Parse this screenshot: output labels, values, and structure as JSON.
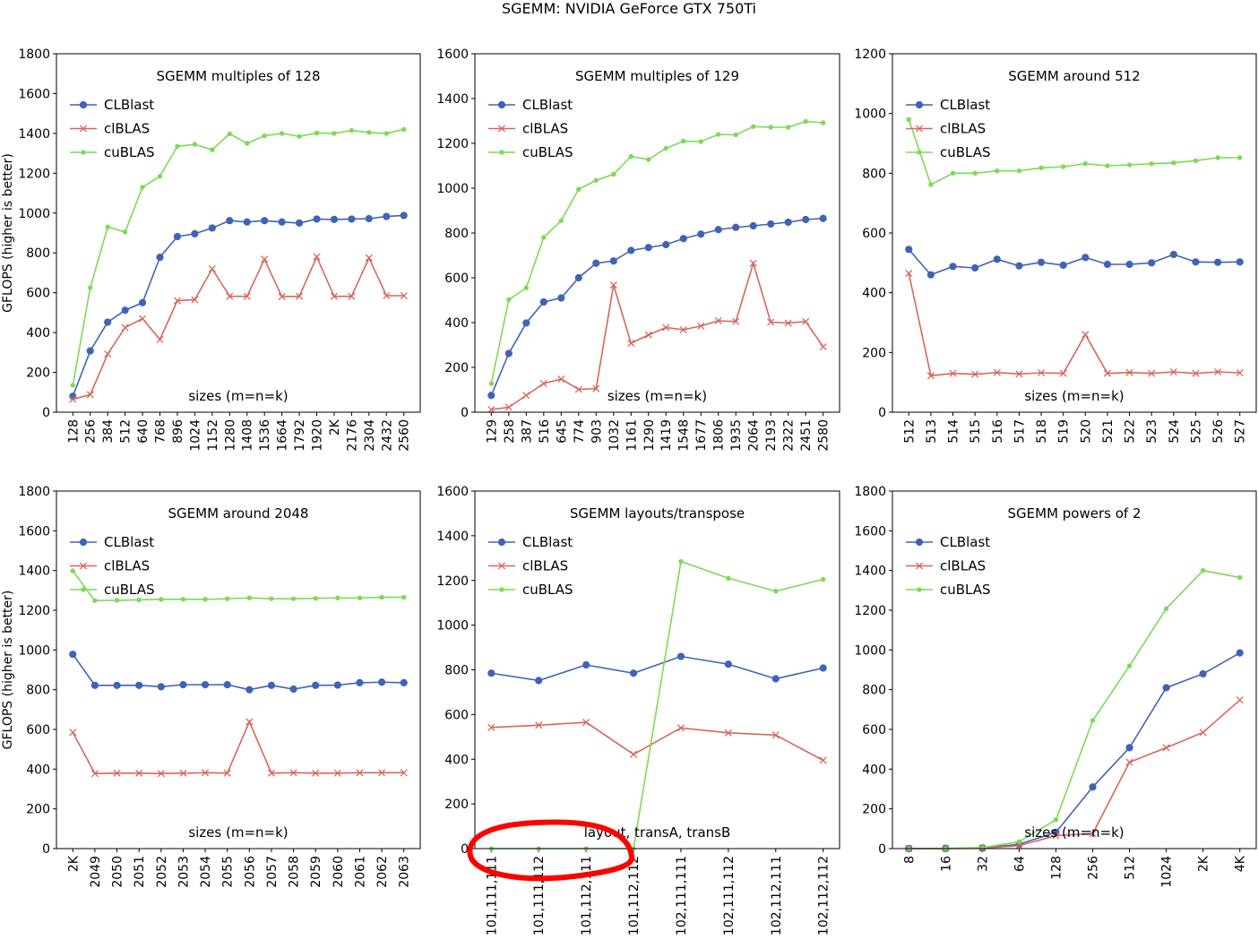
{
  "figure": {
    "title": "SGEMM: NVIDIA GeForce GTX 750Ti"
  },
  "colors": {
    "CLBlast": "#4063b6",
    "clBLAS": "#d6675c",
    "cuBLAS": "#7ed957",
    "annotation": "#ff0000"
  },
  "chart_data": [
    {
      "type": "line",
      "title": "SGEMM multiples of 128",
      "xlabel": "sizes (m=n=k)",
      "ylabel": "GFLOPS (higher is better)",
      "ylim": [
        0,
        1800
      ],
      "yticks": [
        0,
        200,
        400,
        600,
        800,
        1000,
        1200,
        1400,
        1600,
        1800
      ],
      "categories": [
        "128",
        "256",
        "384",
        "512",
        "640",
        "768",
        "896",
        "1024",
        "1152",
        "1280",
        "1408",
        "1536",
        "1664",
        "1792",
        "1920",
        "2K",
        "2176",
        "2304",
        "2432",
        "2560"
      ],
      "legend": "top-left",
      "grid": false,
      "series": [
        {
          "name": "CLBlast",
          "marker": "circle",
          "values": [
            80,
            308,
            452,
            512,
            550,
            778,
            882,
            896,
            925,
            962,
            955,
            962,
            955,
            950,
            970,
            968,
            970,
            972,
            983,
            988
          ]
        },
        {
          "name": "clBLAS",
          "marker": "x",
          "values": [
            65,
            88,
            292,
            425,
            470,
            365,
            560,
            565,
            720,
            582,
            582,
            768,
            580,
            582,
            780,
            582,
            582,
            775,
            585,
            585
          ]
        },
        {
          "name": "cuBLAS",
          "marker": "dot",
          "values": [
            135,
            625,
            930,
            905,
            1130,
            1185,
            1335,
            1345,
            1318,
            1398,
            1350,
            1388,
            1400,
            1385,
            1402,
            1400,
            1415,
            1405,
            1400,
            1420
          ]
        }
      ]
    },
    {
      "type": "line",
      "title": "SGEMM multiples of 129",
      "xlabel": "sizes (m=n=k)",
      "ylabel": "",
      "ylim": [
        0,
        1600
      ],
      "yticks": [
        0,
        200,
        400,
        600,
        800,
        1000,
        1200,
        1400,
        1600
      ],
      "categories": [
        "129",
        "258",
        "387",
        "516",
        "645",
        "774",
        "903",
        "1032",
        "1161",
        "1290",
        "1419",
        "1548",
        "1677",
        "1806",
        "1935",
        "2064",
        "2193",
        "2322",
        "2451",
        "2580"
      ],
      "legend": "top-left",
      "grid": false,
      "series": [
        {
          "name": "CLBlast",
          "marker": "circle",
          "values": [
            75,
            262,
            398,
            492,
            510,
            600,
            665,
            675,
            722,
            735,
            748,
            775,
            795,
            815,
            825,
            832,
            840,
            848,
            860,
            865
          ]
        },
        {
          "name": "clBLAS",
          "marker": "x",
          "values": [
            12,
            22,
            75,
            128,
            148,
            102,
            105,
            568,
            308,
            345,
            378,
            368,
            385,
            408,
            405,
            665,
            402,
            398,
            405,
            292
          ]
        },
        {
          "name": "cuBLAS",
          "marker": "dot",
          "values": [
            128,
            502,
            555,
            780,
            855,
            995,
            1035,
            1062,
            1142,
            1128,
            1178,
            1210,
            1208,
            1240,
            1238,
            1275,
            1272,
            1272,
            1298,
            1292
          ]
        }
      ]
    },
    {
      "type": "line",
      "title": "SGEMM around 512",
      "xlabel": "sizes (m=n=k)",
      "ylabel": "",
      "ylim": [
        0,
        1200
      ],
      "yticks": [
        0,
        200,
        400,
        600,
        800,
        1000,
        1200
      ],
      "categories": [
        "512",
        "513",
        "514",
        "515",
        "516",
        "517",
        "518",
        "519",
        "520",
        "521",
        "522",
        "523",
        "524",
        "525",
        "526",
        "527"
      ],
      "legend": "top-left",
      "grid": false,
      "series": [
        {
          "name": "CLBlast",
          "marker": "circle",
          "values": [
            545,
            460,
            488,
            483,
            512,
            490,
            502,
            492,
            518,
            495,
            495,
            500,
            528,
            503,
            502,
            503
          ]
        },
        {
          "name": "clBLAS",
          "marker": "x",
          "values": [
            465,
            122,
            130,
            127,
            133,
            128,
            132,
            130,
            260,
            130,
            133,
            130,
            135,
            130,
            135,
            132
          ]
        },
        {
          "name": "cuBLAS",
          "marker": "dot",
          "values": [
            980,
            762,
            800,
            800,
            808,
            808,
            818,
            822,
            832,
            825,
            828,
            832,
            835,
            842,
            852,
            852
          ]
        }
      ]
    },
    {
      "type": "line",
      "title": "SGEMM around 2048",
      "xlabel": "sizes (m=n=k)",
      "ylabel": "GFLOPS (higher is better)",
      "ylim": [
        0,
        1800
      ],
      "yticks": [
        0,
        200,
        400,
        600,
        800,
        1000,
        1200,
        1400,
        1600,
        1800
      ],
      "categories": [
        "2K",
        "2049",
        "2050",
        "2051",
        "2052",
        "2053",
        "2054",
        "2055",
        "2056",
        "2057",
        "2058",
        "2059",
        "2060",
        "2061",
        "2062",
        "2063"
      ],
      "legend": "top-left",
      "grid": false,
      "series": [
        {
          "name": "CLBlast",
          "marker": "circle",
          "values": [
            978,
            822,
            822,
            822,
            815,
            825,
            825,
            825,
            800,
            822,
            803,
            822,
            823,
            835,
            838,
            835
          ]
        },
        {
          "name": "clBLAS",
          "marker": "x",
          "values": [
            585,
            378,
            380,
            380,
            378,
            380,
            382,
            380,
            638,
            380,
            382,
            380,
            380,
            382,
            382,
            382
          ]
        },
        {
          "name": "cuBLAS",
          "marker": "dot",
          "values": [
            1398,
            1248,
            1250,
            1252,
            1255,
            1255,
            1255,
            1258,
            1262,
            1258,
            1258,
            1260,
            1262,
            1262,
            1265,
            1265
          ]
        }
      ]
    },
    {
      "type": "line",
      "title": "SGEMM layouts/transpose",
      "xlabel": "layout, transA, transB",
      "ylabel": "",
      "ylim": [
        0,
        1600
      ],
      "yticks": [
        0,
        200,
        400,
        600,
        800,
        1000,
        1200,
        1400,
        1600
      ],
      "categories": [
        "101,111,111",
        "101,111,112",
        "101,112,111",
        "101,112,112",
        "102,111,111",
        "102,111,112",
        "102,112,111",
        "102,112,112"
      ],
      "legend": "top-left",
      "grid": false,
      "series": [
        {
          "name": "CLBlast",
          "marker": "circle",
          "values": [
            785,
            752,
            822,
            785,
            860,
            825,
            760,
            808
          ]
        },
        {
          "name": "clBLAS",
          "marker": "x",
          "values": [
            542,
            552,
            565,
            422,
            540,
            518,
            508,
            395
          ]
        },
        {
          "name": "cuBLAS",
          "marker": "dot",
          "values": [
            0,
            0,
            0,
            0,
            1285,
            1210,
            1152,
            1205
          ]
        }
      ]
    },
    {
      "type": "line",
      "title": "SGEMM powers of 2",
      "xlabel": "sizes (m=n=k)",
      "ylabel": "",
      "ylim": [
        0,
        1800
      ],
      "yticks": [
        0,
        200,
        400,
        600,
        800,
        1000,
        1200,
        1400,
        1600,
        1800
      ],
      "categories": [
        "8",
        "16",
        "32",
        "64",
        "128",
        "256",
        "512",
        "1024",
        "2K",
        "4K"
      ],
      "legend": "top-left",
      "grid": false,
      "series": [
        {
          "name": "CLBlast",
          "marker": "circle",
          "values": [
            0,
            1,
            3,
            22,
            82,
            310,
            508,
            810,
            880,
            985
          ]
        },
        {
          "name": "clBLAS",
          "marker": "x",
          "values": [
            0,
            0,
            2,
            15,
            65,
            75,
            435,
            508,
            585,
            748
          ]
        },
        {
          "name": "cuBLAS",
          "marker": "dot",
          "values": [
            0,
            1,
            5,
            35,
            145,
            645,
            920,
            1208,
            1400,
            1365
          ]
        }
      ]
    }
  ]
}
